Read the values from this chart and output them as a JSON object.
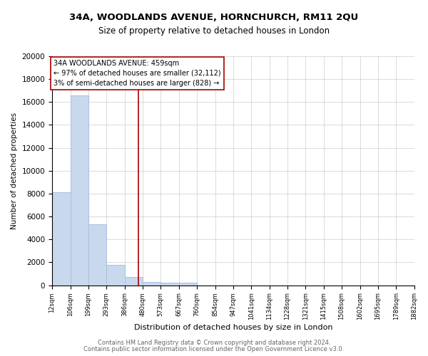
{
  "title": "34A, WOODLANDS AVENUE, HORNCHURCH, RM11 2QU",
  "subtitle": "Size of property relative to detached houses in London",
  "xlabel": "Distribution of detached houses by size in London",
  "ylabel": "Number of detached properties",
  "bar_color": "#c8d9ee",
  "bar_edge_color": "#a8c0dc",
  "property_line_color": "#aa0000",
  "property_size": 459,
  "annotation_line1": "34A WOODLANDS AVENUE: 459sqm",
  "annotation_line2": "← 97% of detached houses are smaller (32,112)",
  "annotation_line3": "3% of semi-detached houses are larger (828) →",
  "bin_edges": [
    12,
    106,
    199,
    293,
    386,
    480,
    573,
    667,
    760,
    854,
    947,
    1041,
    1134,
    1228,
    1321,
    1415,
    1508,
    1602,
    1695,
    1789,
    1882
  ],
  "bar_heights": [
    8100,
    16600,
    5300,
    1750,
    750,
    300,
    200,
    200,
    0,
    0,
    0,
    0,
    0,
    0,
    0,
    0,
    0,
    0,
    0,
    0
  ],
  "ylim": [
    0,
    20000
  ],
  "yticks": [
    0,
    2000,
    4000,
    6000,
    8000,
    10000,
    12000,
    14000,
    16000,
    18000,
    20000
  ],
  "footer_line1": "Contains HM Land Registry data © Crown copyright and database right 2024.",
  "footer_line2": "Contains public sector information licensed under the Open Government Licence v3.0.",
  "background_color": "#ffffff",
  "grid_color": "#cccccc"
}
